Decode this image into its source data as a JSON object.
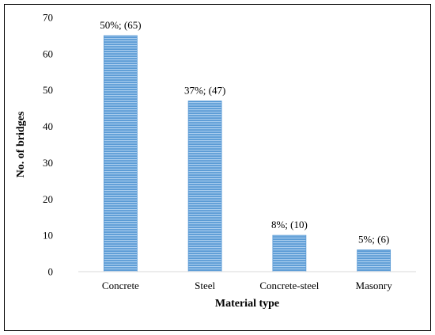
{
  "chart_data": {
    "type": "bar",
    "categories": [
      "Concrete",
      "Steel",
      "Concrete-steel",
      "Masonry"
    ],
    "values": [
      65,
      47,
      10,
      6
    ],
    "data_labels": [
      "50%; (65)",
      "37%; (47)",
      "8%; (10)",
      "5%; (6)"
    ],
    "xlabel": "Material type",
    "ylabel": "No. of bridges",
    "ylim": [
      0,
      70
    ],
    "yticks": [
      0,
      10,
      20,
      30,
      40,
      50,
      60,
      70
    ],
    "grid": false,
    "legend": "none",
    "bar_color": "#5b9bd5",
    "bar_stripe_color": "#a9cdee"
  }
}
